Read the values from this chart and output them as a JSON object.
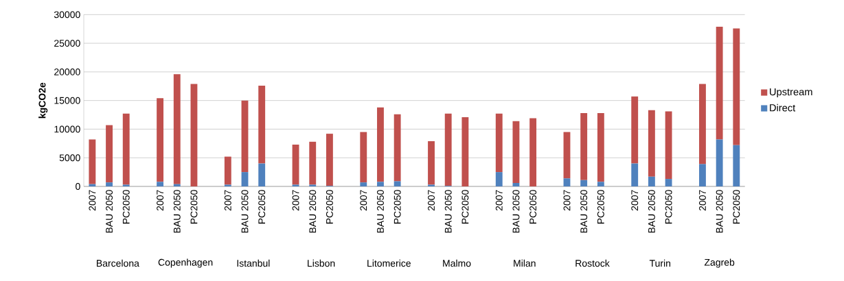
{
  "chart_data": {
    "type": "bar",
    "stacked": true,
    "ylabel": "kgCO2e",
    "categories": [
      "2007",
      "BAU 2050",
      "PC2050",
      null,
      "2007",
      "BAU 2050",
      "PC2050",
      null,
      "2007",
      "BAU 2050",
      "PC2050",
      null,
      "2007",
      "BAU 2050",
      "PC2050",
      null,
      "2007",
      "BAU 2050",
      "PC2050",
      null,
      "2007",
      "BAU 2050",
      "PC2050",
      null,
      "2007",
      "BAU 2050",
      "PC2050",
      null,
      "2007",
      "BAU 2050",
      "PC2050",
      null,
      "2007",
      "BAU 2050",
      "PC2050",
      null,
      "2007",
      "BAU 2050",
      "PC2050"
    ],
    "series": [
      {
        "name": "Direct",
        "color": "#4f81bd",
        "values": [
          400,
          700,
          300,
          null,
          800,
          400,
          0,
          null,
          300,
          2500,
          4000,
          null,
          300,
          300,
          100,
          null,
          700,
          800,
          900,
          null,
          300,
          100,
          0,
          null,
          2500,
          600,
          0,
          null,
          1400,
          1100,
          800,
          null,
          4000,
          1700,
          1300,
          null,
          3900,
          8200,
          7200
        ]
      },
      {
        "name": "Upstream",
        "color": "#c0504d",
        "values": [
          7800,
          10000,
          12400,
          null,
          14600,
          19200,
          17900,
          null,
          4900,
          12500,
          13600,
          null,
          7000,
          7500,
          9100,
          null,
          8800,
          13000,
          11700,
          null,
          7600,
          12600,
          12100,
          null,
          10200,
          10800,
          11900,
          null,
          8100,
          11700,
          12000,
          null,
          11700,
          11600,
          11800,
          null,
          14000,
          19700,
          20400
        ]
      }
    ],
    "ylim": [
      0,
      30000
    ],
    "yticks": [
      0,
      5000,
      10000,
      15000,
      20000,
      25000,
      30000
    ],
    "grid": "y",
    "legend": "right",
    "annotations": [
      "Barcelona",
      "Copenhagen",
      "Istanbul",
      "Lisbon",
      "Litomerice",
      "Malmo",
      "Milan",
      "Rostock",
      "Turin",
      "Zagreb"
    ]
  }
}
